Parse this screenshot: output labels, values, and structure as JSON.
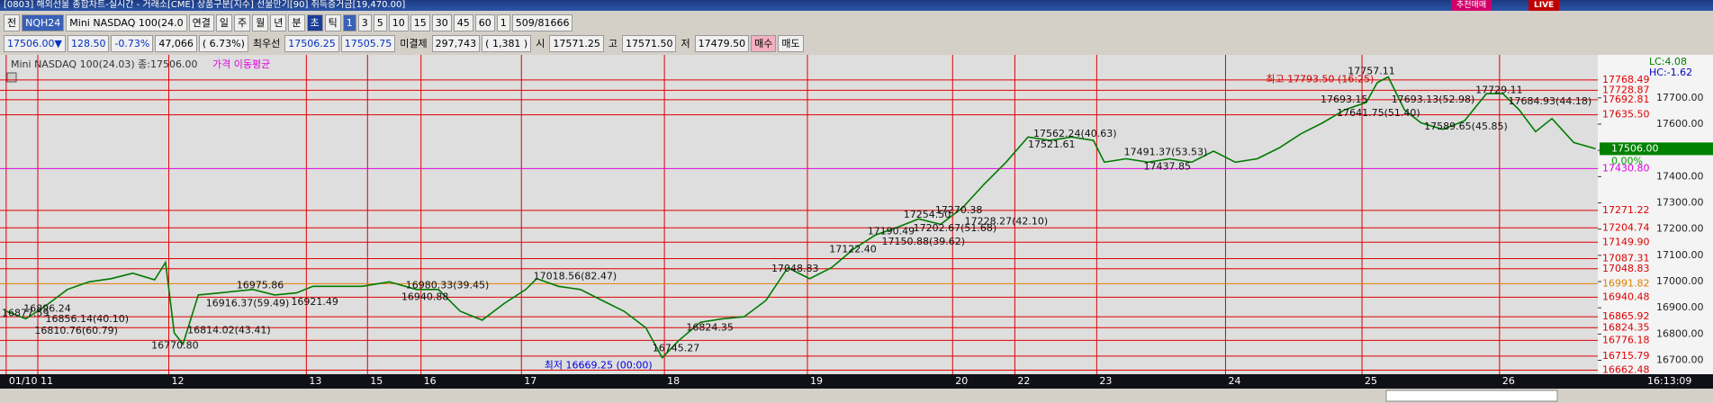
{
  "window": {
    "title": "[0803] 해외선물 종합차트-실시간 - 거래소[CME] 상품구분[지수] 선물만기[90] 취득증거금[19,470.00]",
    "badges": [
      "추천매매",
      "LIVE"
    ]
  },
  "toolbar": {
    "row1": [
      "전",
      "NQH24",
      "Mini NASDAQ 100(24.0",
      "연결",
      "일",
      "주",
      "월",
      "년",
      "분",
      "초",
      "틱",
      "1",
      "3",
      "5",
      "10",
      "15",
      "30",
      "45",
      "60",
      "1",
      "509/81666"
    ],
    "row2": [
      "17506.00▼",
      "128.50",
      "-0.73%",
      "47,066",
      "( 6.73%)",
      "최우선",
      "17506.25",
      "17505.75",
      "미결제",
      "297,743",
      "( 1,381 )",
      "시",
      "17571.25",
      "고",
      "17571.50",
      "저",
      "17479.50",
      "매수",
      "매도"
    ]
  },
  "chart_data": {
    "type": "line",
    "series": [
      {
        "name": "Mini NASDAQ 100(24.03) 종:17506.00",
        "color": "#007a00",
        "x": [
          4,
          22,
          40,
          60,
          80,
          100,
          120,
          140,
          150,
          158,
          166,
          180,
          200,
          230,
          250,
          270,
          285,
          305,
          330,
          355,
          380,
          400,
          420,
          440,
          460,
          480,
          490,
          510,
          530,
          550,
          570,
          590,
          605,
          620,
          640,
          660,
          680,
          700,
          720,
          740,
          760,
          780,
          800,
          820,
          840,
          860,
          880,
          900,
          920,
          940,
          960,
          980,
          1000,
          1010,
          1030,
          1050,
          1070,
          1090,
          1110,
          1130,
          1150,
          1170,
          1190,
          1210,
          1230,
          1250,
          1260,
          1270,
          1285,
          1300,
          1320,
          1340,
          1360,
          1375,
          1390,
          1405,
          1420,
          1440,
          1460
        ],
        "values": [
          16887,
          16858,
          16907,
          16970,
          16999,
          17011,
          17032,
          17007,
          17073,
          16804,
          16762,
          16949,
          16957,
          16970,
          16949,
          16957,
          16982,
          16982,
          16982,
          16999,
          16970,
          16970,
          16887,
          16853,
          16916,
          16970,
          17011,
          16982,
          16970,
          16928,
          16887,
          16824,
          16710,
          16775,
          16845,
          16858,
          16866,
          16928,
          17053,
          17011,
          17053,
          17123,
          17177,
          17206,
          17239,
          17218,
          17281,
          17372,
          17455,
          17551,
          17538,
          17551,
          17538,
          17455,
          17468,
          17455,
          17468,
          17455,
          17497,
          17455,
          17468,
          17509,
          17563,
          17605,
          17654,
          17683,
          17758,
          17780,
          17654,
          17605,
          17580,
          17613,
          17716,
          17716,
          17654,
          17571,
          17621,
          17530,
          17506
        ]
      }
    ],
    "indicator": "가격 이동평균",
    "indicator_color": "#e000e0",
    "xlim": [
      0,
      1462
    ],
    "xticks": [
      {
        "value": 4,
        "label": "01/10"
      },
      {
        "value": 33,
        "label": "11"
      },
      {
        "value": 153,
        "label": "12"
      },
      {
        "value": 279,
        "label": "13"
      },
      {
        "value": 335,
        "label": "15"
      },
      {
        "value": 384,
        "label": "16"
      },
      {
        "value": 476,
        "label": "17"
      },
      {
        "value": 607,
        "label": "18"
      },
      {
        "value": 738,
        "label": "19"
      },
      {
        "value": 871,
        "label": "20"
      },
      {
        "value": 928,
        "label": "22"
      },
      {
        "value": 1003,
        "label": "23"
      },
      {
        "value": 1121,
        "label": "24"
      },
      {
        "value": 1246,
        "label": "25"
      },
      {
        "value": 1372,
        "label": "26"
      }
    ],
    "ylim": [
      16647,
      17857
    ],
    "yticks": [
      {
        "value": 16700,
        "label": "16700.00"
      },
      {
        "value": 16800,
        "label": "16800.00"
      },
      {
        "value": 16900,
        "label": "16900.00"
      },
      {
        "value": 17000,
        "label": "17000.00"
      },
      {
        "value": 17100,
        "label": "17100.00"
      },
      {
        "value": 17200,
        "label": "17200.00"
      },
      {
        "value": 17300,
        "label": "17300.00"
      },
      {
        "value": 17400,
        "label": "17400.00"
      },
      {
        "value": 17500,
        "label": "17500.00"
      },
      {
        "value": 17600,
        "label": "17600.00"
      },
      {
        "value": 17700,
        "label": "17700.00"
      }
    ],
    "levels": [
      {
        "value": 17768.49,
        "color": "#e00000"
      },
      {
        "value": 17728.87,
        "color": "#e00000"
      },
      {
        "value": 17692.81,
        "color": "#e00000"
      },
      {
        "value": {
          "value": 17635.5,
          "label": "17635.50"
        },
        "color": "#e00000"
      },
      {
        "value": {
          "value": 17430.8,
          "label": "17430.80"
        },
        "color": "#e000e0"
      },
      {
        "value": 17271.22,
        "color": "#e00000"
      },
      {
        "value": 17204.74,
        "color": "#e00000"
      },
      {
        "value": {
          "value": 17149.9,
          "label": "17149.90"
        },
        "color": "#e00000"
      },
      {
        "value": 17087.31,
        "color": "#e00000"
      },
      {
        "value": 17048.83,
        "color": "#e00000"
      },
      {
        "value": 16991.82,
        "color": "#e08000"
      },
      {
        "value": 16940.48,
        "color": "#e00000"
      },
      {
        "value": 16865.92,
        "color": "#e00000"
      },
      {
        "value": 16824.35,
        "color": "#e00000"
      },
      {
        "value": 16776.18,
        "color": "#e00000"
      },
      {
        "value": 16715.79,
        "color": "#e00000"
      },
      {
        "value": 16662.48,
        "color": "#e00000"
      }
    ],
    "last_price": {
      "value": 17506,
      "label": "17506.00"
    },
    "last_change": "0.00%",
    "lc": "LC:4.08",
    "hc": "HC:-1.62",
    "time": "16:13:09",
    "annotations": [
      {
        "text": "16877.59",
        "x": 0,
        "y": 16877.59
      },
      {
        "text": "16896.24",
        "x": 20,
        "y": 16896.24
      },
      {
        "text": "16856.14(40.10)",
        "x": 40,
        "y": 16856.14
      },
      {
        "text": "16810.76(60.79)",
        "x": 30,
        "y": 16810.76
      },
      {
        "text": "16770.80",
        "x": 137,
        "y": 16755
      },
      {
        "text": "16814.02(43.41)",
        "x": 170,
        "y": 16814.02
      },
      {
        "text": "16975.86",
        "x": 215,
        "y": 16985
      },
      {
        "text": "16916.37(59.49)",
        "x": 187,
        "y": 16916.37
      },
      {
        "text": "16921.49",
        "x": 265,
        "y": 16921.49
      },
      {
        "text": "16980.33(39.45)",
        "x": 370,
        "y": 16985
      },
      {
        "text": "16940.88",
        "x": 366,
        "y": 16940.88
      },
      {
        "text": "17018.56(82.47)",
        "x": 487,
        "y": 17018.56
      },
      {
        "text": "16824.35",
        "x": 627,
        "y": 16824.35
      },
      {
        "text": "16745.27",
        "x": 596,
        "y": 16745.27
      },
      {
        "text": "17048.83",
        "x": 705,
        "y": 17048.83
      },
      {
        "text": "17122.40",
        "x": 758,
        "y": 17122.4
      },
      {
        "text": "17190.49",
        "x": 793,
        "y": 17190.49
      },
      {
        "text": "17150.88(39.62)",
        "x": 806,
        "y": 17150.88
      },
      {
        "text": "17254.50",
        "x": 826,
        "y": 17254.5
      },
      {
        "text": "17270.38",
        "x": 855,
        "y": 17270.38
      },
      {
        "text": "17202.67(51.68)",
        "x": 835,
        "y": 17202.67
      },
      {
        "text": "17228.27(42.10)",
        "x": 882,
        "y": 17228.27
      },
      {
        "text": "17562.24(40.63)",
        "x": 945,
        "y": 17562.24
      },
      {
        "text": "17521.61",
        "x": 940,
        "y": 17521.61
      },
      {
        "text": "17491.37(53.53)",
        "x": 1028,
        "y": 17491.37
      },
      {
        "text": "17437.85",
        "x": 1046,
        "y": 17437.85
      },
      {
        "text": "17693.15",
        "x": 1208,
        "y": 17693.15
      },
      {
        "text": "17641.75(51.40)",
        "x": 1223,
        "y": 17641.75
      },
      {
        "text": "17693.13(52.98)",
        "x": 1273,
        "y": 17693.13
      },
      {
        "text": "17589.65(45.85)",
        "x": 1303,
        "y": 17589.65
      },
      {
        "text": "17729.11",
        "x": 1350,
        "y": 17729.11
      },
      {
        "text": "17684.93(44.18)",
        "x": 1380,
        "y": 17684.93
      },
      {
        "text": "17757.11",
        "x": 1233,
        "y": 17800
      },
      {
        "text": "최고 17793.50 (16:25)",
        "x": 1158,
        "y": 17770,
        "color": "#d00000"
      },
      {
        "text": "최저 16669.25 (00:00)",
        "x": 497,
        "y": 16680,
        "color": "#0000e0"
      }
    ]
  }
}
